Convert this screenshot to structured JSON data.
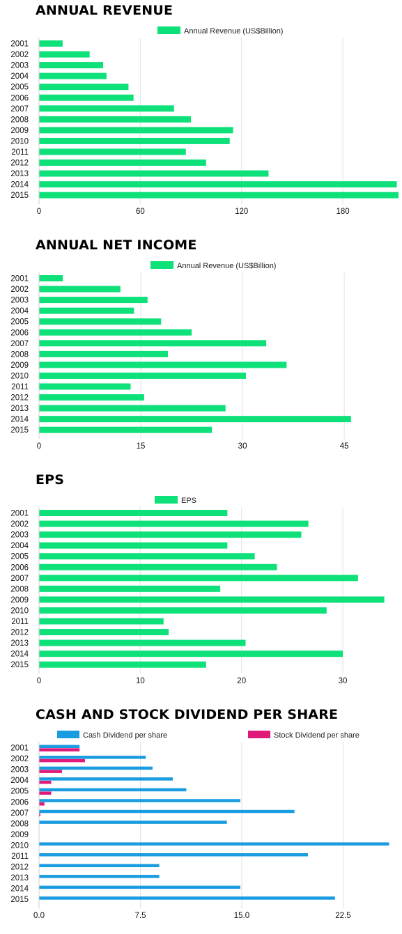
{
  "chart_data": [
    {
      "type": "bar",
      "orientation": "horizontal",
      "title": "ANNUAL REVENUE",
      "categories": [
        "2001",
        "2002",
        "2003",
        "2004",
        "2005",
        "2006",
        "2007",
        "2008",
        "2009",
        "2010",
        "2011",
        "2012",
        "2013",
        "2014",
        "2015"
      ],
      "series": [
        {
          "name": "Annual Revenue (US$Billion)",
          "color": "#0ee07a",
          "values": [
            14,
            30,
            38,
            40,
            53,
            56,
            80,
            90,
            115,
            113,
            87,
            99,
            136,
            212,
            213
          ]
        }
      ],
      "xlim": [
        0,
        213
      ],
      "xticks": [
        "0",
        "60",
        "120",
        "180"
      ],
      "xtick_values": [
        0,
        60,
        120,
        180
      ],
      "grid": true,
      "legend_position": "top"
    },
    {
      "type": "bar",
      "orientation": "horizontal",
      "title": "ANNUAL NET INCOME",
      "categories": [
        "2001",
        "2002",
        "2003",
        "2004",
        "2005",
        "2006",
        "2007",
        "2008",
        "2009",
        "2010",
        "2011",
        "2012",
        "2013",
        "2014",
        "2015"
      ],
      "series": [
        {
          "name": "Annual Revenue (US$Billion)",
          "color": "#0ee07a",
          "values": [
            3.5,
            12,
            16,
            14,
            18,
            22.5,
            33.5,
            19,
            36.5,
            30.5,
            13.5,
            15.5,
            27.5,
            46,
            25.5
          ]
        }
      ],
      "xlim": [
        0,
        53
      ],
      "xticks": [
        "0",
        "15",
        "30",
        "45"
      ],
      "xtick_values": [
        0,
        15,
        30,
        45
      ],
      "grid": true,
      "legend_position": "top"
    },
    {
      "type": "bar",
      "orientation": "horizontal",
      "title": "EPS",
      "categories": [
        "2001",
        "2002",
        "2003",
        "2004",
        "2005",
        "2006",
        "2007",
        "2008",
        "2009",
        "2010",
        "2011",
        "2012",
        "2013",
        "2014",
        "2015"
      ],
      "series": [
        {
          "name": "EPS",
          "color": "#0ee07a",
          "values": [
            18.6,
            26.6,
            25.9,
            18.6,
            21.3,
            23.5,
            31.5,
            17.9,
            34.1,
            28.4,
            12.3,
            12.8,
            20.4,
            30.0,
            16.5
          ]
        }
      ],
      "xlim": [
        0,
        35.5
      ],
      "xticks": [
        "0",
        "10",
        "20",
        "30"
      ],
      "xtick_values": [
        0,
        10,
        20,
        30
      ],
      "grid": true,
      "legend_position": "top"
    },
    {
      "type": "bar",
      "orientation": "horizontal",
      "title": "CASH AND STOCK DIVIDEND PER SHARE",
      "categories": [
        "2001",
        "2002",
        "2003",
        "2004",
        "2005",
        "2006",
        "2007",
        "2008",
        "2009",
        "2010",
        "2011",
        "2012",
        "2013",
        "2014",
        "2015"
      ],
      "series": [
        {
          "name": "Cash Dividend per share",
          "color": "#1a9ce0",
          "values": [
            3.0,
            7.9,
            8.4,
            9.9,
            10.9,
            14.9,
            18.9,
            13.9,
            0,
            25.9,
            19.9,
            8.9,
            8.9,
            14.9,
            21.9
          ]
        },
        {
          "name": "Stock Dividend per share",
          "color": "#e0197a",
          "values": [
            3.0,
            3.4,
            1.7,
            0.9,
            0.9,
            0.4,
            0.1,
            0,
            0,
            0,
            0,
            0,
            0,
            0,
            0
          ]
        }
      ],
      "xlim": [
        0,
        26.6
      ],
      "xticks": [
        "0.0",
        "7.5",
        "15.0",
        "22.5"
      ],
      "xtick_values": [
        0,
        7.5,
        15,
        22.5
      ],
      "grid": true,
      "legend_position": "top"
    }
  ]
}
